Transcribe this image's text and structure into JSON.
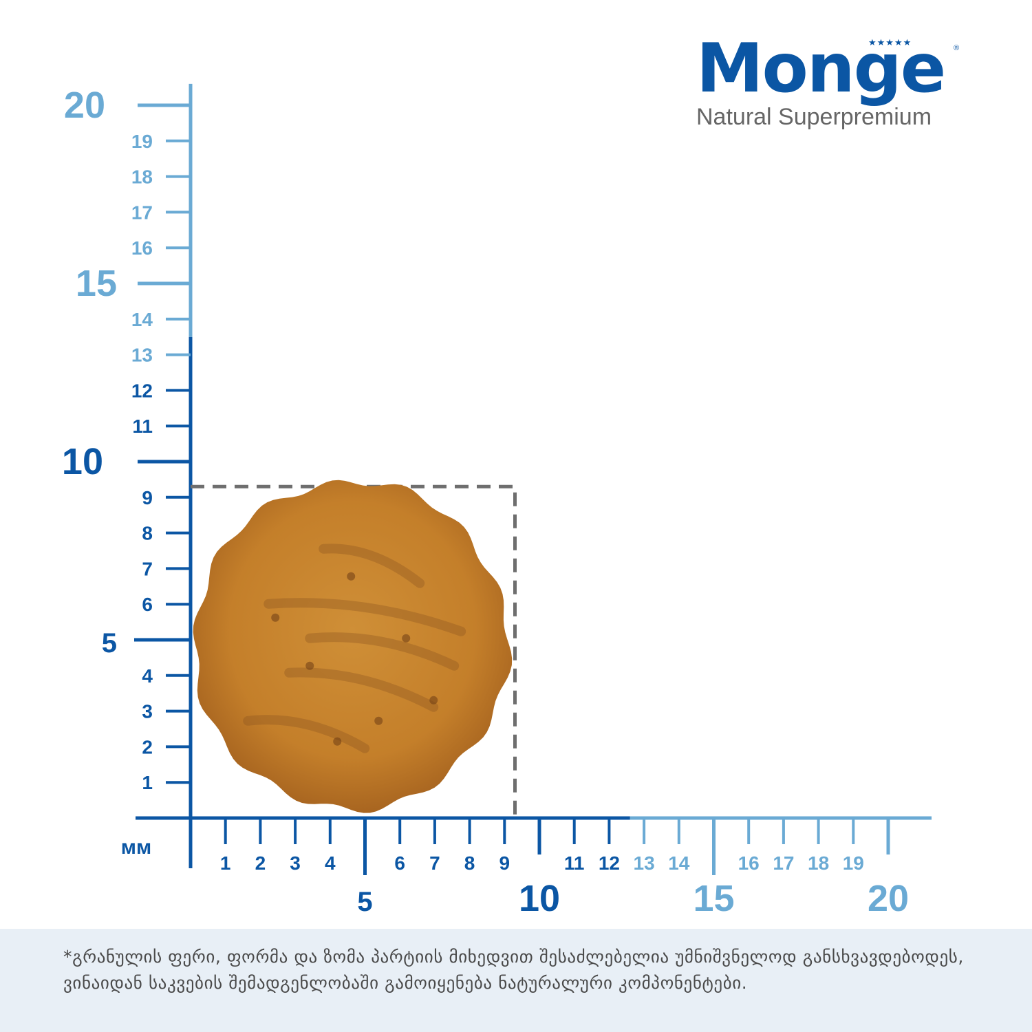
{
  "brand": {
    "name": "Monge",
    "tagline": "Natural Superpremium",
    "stars_icon": "five-stars-icon",
    "registered_mark": "®"
  },
  "unit_label": "мм",
  "colors": {
    "dark_blue": "#0b56a4",
    "light_blue": "#6aaad4",
    "dashed_box": "#6e6e6e",
    "kibble": "#c9862f"
  },
  "y_axis": {
    "major_labels": [
      "5",
      "10",
      "15",
      "20"
    ],
    "minor_labels": [
      "1",
      "2",
      "3",
      "4",
      "6",
      "7",
      "8",
      "9",
      "11",
      "12",
      "13",
      "14",
      "16",
      "17",
      "18",
      "19"
    ]
  },
  "x_axis": {
    "major_labels": [
      "5",
      "10",
      "15",
      "20"
    ],
    "minor_labels": [
      "1",
      "2",
      "3",
      "4",
      "6",
      "7",
      "8",
      "9",
      "11",
      "12",
      "13",
      "14",
      "16",
      "17",
      "18",
      "19"
    ]
  },
  "kibble": {
    "name": "kibble-photo",
    "width_mm": 9,
    "height_mm": 9
  },
  "size_box_mm": 9.3,
  "footer": {
    "note": "*გრანულის ფერი, ფორმა და ზომა პარტიის მიხედვით შესაძლებელია უმნიშვნელოდ განსხვავდებოდეს,  ვინაიდან საკვების შემადგენლობაში გამოიყენება ნატურალური კომპონენტები."
  }
}
